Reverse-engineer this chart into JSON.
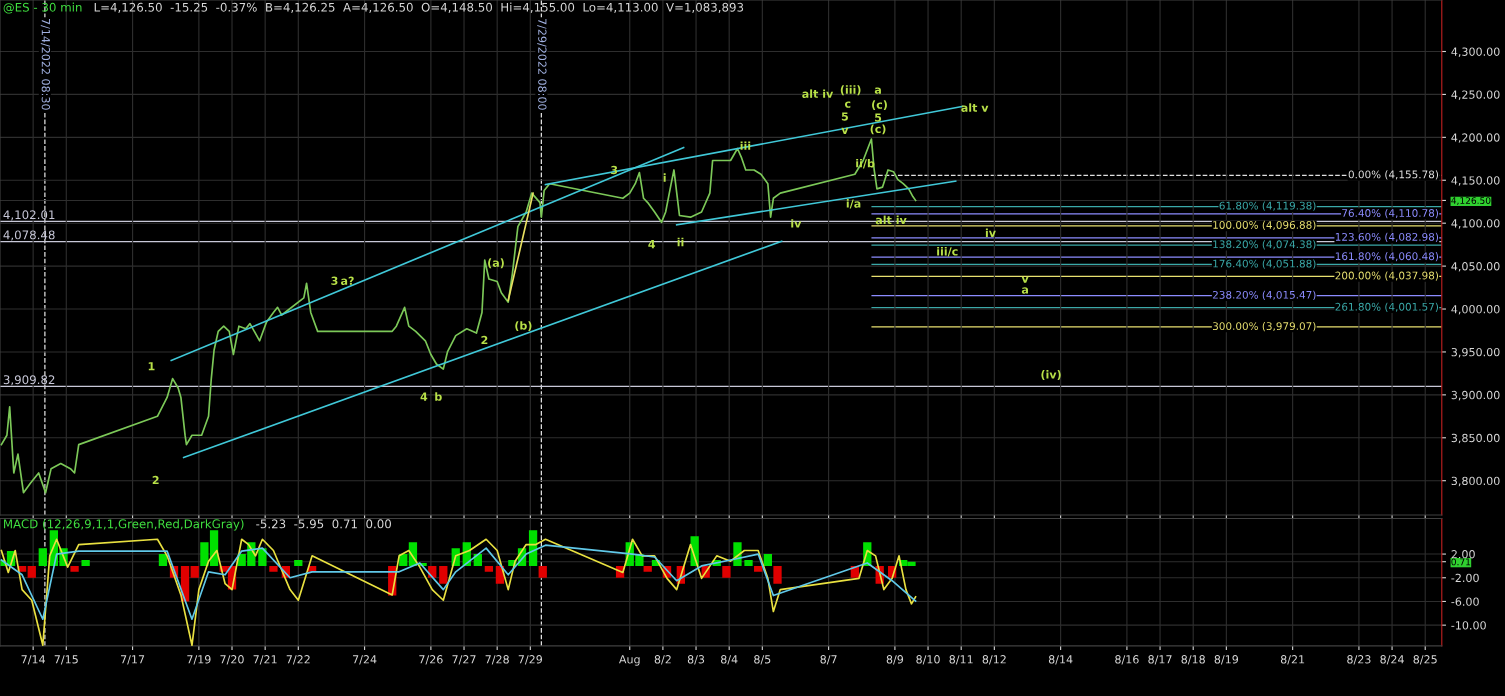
{
  "chart_data": [
    {
      "type": "line",
      "title": "@ES - 30 min",
      "subtitle": "L=4,126.50  -15.25  -0.37%  B=4,126.25  A=4,126.50  O=4,148.50  Hi=4,155.00  Lo=4,113.00  V=1,083,893",
      "xlim": [
        "2022-07-13T00:00",
        "2022-08-25T12:00"
      ],
      "ylim": [
        3760,
        4360
      ],
      "xticks": [
        {
          "value": "2022-07-14",
          "label": null
        },
        {
          "value": "2022-07-15",
          "label": null
        },
        {
          "value": "2022-07-17",
          "label": null
        },
        {
          "value": "2022-07-19",
          "label": null
        },
        {
          "value": "2022-07-20",
          "label": null
        },
        {
          "value": "2022-07-21",
          "label": null
        },
        {
          "value": "2022-07-22",
          "label": null
        },
        {
          "value": "2022-07-24",
          "label": null
        },
        {
          "value": "2022-07-26",
          "label": null
        },
        {
          "value": "2022-07-27",
          "label": null
        },
        {
          "value": "2022-07-28",
          "label": null
        },
        {
          "value": "2022-07-29",
          "label": null
        },
        {
          "value": "2022-08-01",
          "label": null
        },
        {
          "value": "2022-08-02",
          "label": null
        },
        {
          "value": "2022-08-03",
          "label": null
        },
        {
          "value": "2022-08-04",
          "label": null
        },
        {
          "value": "2022-08-05",
          "label": null
        },
        {
          "value": "2022-08-07",
          "label": null
        },
        {
          "value": "2022-08-09",
          "label": null
        },
        {
          "value": "2022-08-10",
          "label": null
        },
        {
          "value": "2022-08-11",
          "label": null
        },
        {
          "value": "2022-08-12",
          "label": null
        },
        {
          "value": "2022-08-14",
          "label": null
        },
        {
          "value": "2022-08-16",
          "label": null
        },
        {
          "value": "2022-08-17",
          "label": null
        },
        {
          "value": "2022-08-18",
          "label": null
        },
        {
          "value": "2022-08-19",
          "label": null
        },
        {
          "value": "2022-08-21",
          "label": null
        },
        {
          "value": "2022-08-23",
          "label": null
        },
        {
          "value": "2022-08-24",
          "label": null
        },
        {
          "value": "2022-08-25",
          "label": null
        }
      ],
      "yticks": [
        {
          "value": 3800,
          "label": "3,800.00"
        },
        {
          "value": 3850,
          "label": "3,850.00"
        },
        {
          "value": 3900,
          "label": "3,900.00"
        },
        {
          "value": 3950,
          "label": "3,950.00"
        },
        {
          "value": 4000,
          "label": "4,000.00"
        },
        {
          "value": 4050,
          "label": "4,050.00"
        },
        {
          "value": 4100,
          "label": "4,100.00"
        },
        {
          "value": 4126.5,
          "label": "4,126.50"
        },
        {
          "value": 4150,
          "label": "4,150.00"
        },
        {
          "value": 4200,
          "label": "4,200.00"
        },
        {
          "value": 4250,
          "label": "4,250.00"
        },
        {
          "value": 4300,
          "label": "4,300.00"
        }
      ],
      "tick_labels": "y",
      "grid": true,
      "legend": false,
      "series": [
        {
          "color": "#7cc858",
          "x": [
            "2022-07-13T01:00",
            "2022-07-13T05:00",
            "2022-07-13T07:00",
            "2022-07-13T10:00",
            "2022-07-13T13:00",
            "2022-07-13T17:00",
            "2022-07-13T22:00",
            "2022-07-14T04:00",
            "2022-07-14T09:00",
            "2022-07-14T13:00",
            "2022-07-14T20:00",
            "2022-07-15T03:00",
            "2022-07-15T06:00",
            "2022-07-15T09:00",
            "2022-07-17T18:00",
            "2022-07-18T01:00",
            "2022-07-18T05:00",
            "2022-07-18T09:00",
            "2022-07-18T11:00",
            "2022-07-18T14:00",
            "2022-07-18T15:00",
            "2022-07-18T19:00",
            "2022-07-19T02:00",
            "2022-07-19T07:00",
            "2022-07-19T09:00",
            "2022-07-19T11:00",
            "2022-07-19T14:00",
            "2022-07-19T18:00",
            "2022-07-19T22:00",
            "2022-07-20T01:00",
            "2022-07-20T05:00",
            "2022-07-20T10:00",
            "2022-07-20T13:00",
            "2022-07-20T20:00",
            "2022-07-21T01:00",
            "2022-07-21T06:00",
            "2022-07-21T09:00",
            "2022-07-21T12:00",
            "2022-07-22T04:00",
            "2022-07-22T06:00",
            "2022-07-22T09:00",
            "2022-07-22T14:00",
            "2022-07-24T20:00",
            "2022-07-24T23:00",
            "2022-07-25T05:00",
            "2022-07-25T08:00",
            "2022-07-25T13:00",
            "2022-07-25T20:00",
            "2022-07-26T00:00",
            "2022-07-26T04:00",
            "2022-07-26T09:00",
            "2022-07-26T12:00",
            "2022-07-26T18:00",
            "2022-07-27T02:00",
            "2022-07-27T09:00",
            "2022-07-27T13:00",
            "2022-07-27T15:00",
            "2022-07-27T18:00",
            "2022-07-28T00:00",
            "2022-07-28T03:00",
            "2022-07-28T08:00",
            "2022-07-28T11:00",
            "2022-07-28T15:00",
            "2022-07-28T21:00",
            "2022-07-29T01:00",
            "2022-07-29T07:00",
            "2022-07-29T08:00",
            "2022-07-29T10:00",
            "2022-07-29T14:00",
            "2022-07-31T19:00",
            "2022-08-01T00:00",
            "2022-08-01T04:00",
            "2022-08-01T07:00",
            "2022-08-01T10:00",
            "2022-08-01T13:00",
            "2022-08-01T18:00",
            "2022-08-01T23:00",
            "2022-08-02T02:00",
            "2022-08-02T06:00",
            "2022-08-02T08:00",
            "2022-08-02T12:00",
            "2022-08-02T20:00",
            "2022-08-03T04:00",
            "2022-08-03T10:00",
            "2022-08-03T12:00",
            "2022-08-03T18:00",
            "2022-08-04T01:00",
            "2022-08-04T06:00",
            "2022-08-04T09:00",
            "2022-08-04T12:00",
            "2022-08-04T18:00",
            "2022-08-04T23:00",
            "2022-08-05T04:00",
            "2022-08-05T06:00",
            "2022-08-05T08:00",
            "2022-08-05T13:00",
            "2022-08-07T19:00",
            "2022-08-08T01:00",
            "2022-08-08T07:00",
            "2022-08-08T09:00",
            "2022-08-08T11:00",
            "2022-08-08T15:00",
            "2022-08-08T19:00",
            "2022-08-08T23:00",
            "2022-08-09T02:00",
            "2022-08-09T06:00",
            "2022-08-09T10:00",
            "2022-08-09T13:00",
            "2022-08-09T15:00"
          ],
          "values": [
            3842,
            3853,
            3886,
            3809,
            3831,
            3786,
            3797,
            3809,
            3786,
            3814,
            3820,
            3814,
            3809,
            3842,
            3875,
            3897,
            3919,
            3908,
            3897,
            3853,
            3842,
            3853,
            3853,
            3875,
            3919,
            3952,
            3974,
            3980,
            3974,
            3947,
            3980,
            3977,
            3983,
            3963,
            3985,
            3996,
            4002,
            3993,
            4013,
            4030,
            3996,
            3974,
            3974,
            3980,
            4002,
            3980,
            3974,
            3963,
            3947,
            3936,
            3930,
            3950,
            3969,
            3977,
            3972,
            3996,
            4057,
            4035,
            4032,
            4019,
            4008,
            4041,
            4096,
            4113,
            4135,
            4124,
            4107,
            4138,
            4146,
            4129,
            4135,
            4146,
            4159,
            4129,
            4124,
            4113,
            4101,
            4113,
            4146,
            4162,
            4109,
            4107,
            4113,
            4135,
            4173,
            4173,
            4173,
            4187,
            4176,
            4162,
            4162,
            4157,
            4146,
            4107,
            4129,
            4135,
            4157,
            4173,
            4198,
            4162,
            4140,
            4142,
            4162,
            4160,
            4151,
            4146,
            4140,
            4131,
            4126.5
          ]
        },
        {
          "type": "line",
          "color": "#40c8d8",
          "x": [
            "2022-07-18T04:00",
            "2022-08-02T15:00"
          ],
          "values": [
            3940,
            4188
          ]
        },
        {
          "type": "line",
          "color": "#40c8d8",
          "x": [
            "2022-07-29T11:00",
            "2022-08-11T01:00"
          ],
          "values": [
            4145,
            4236
          ]
        },
        {
          "type": "line",
          "color": "#40c8d8",
          "x": [
            "2022-07-18T13:00",
            "2022-08-05T14:00"
          ],
          "values": [
            3827,
            4079
          ]
        },
        {
          "type": "line",
          "color": "#40c8d8",
          "x": [
            "2022-08-02T10:00",
            "2022-08-10T20:00"
          ],
          "values": [
            4098,
            4149
          ]
        },
        {
          "type": "line",
          "color": "#e8e060",
          "x": [
            "2022-07-28T08:00",
            "2022-07-29T02:00"
          ],
          "values": [
            4010,
            4135
          ]
        }
      ],
      "ref_lines": [
        {
          "axis": "x",
          "value": "2022-07-14T08:30",
          "label": "7/14/2022 08:30",
          "color": "#e0e0e0",
          "line_style": "dashed"
        },
        {
          "axis": "x",
          "value": "2022-07-29T08:00",
          "label": "7/29/2022 08:00",
          "color": "#e0e0e0",
          "line_style": "dashed"
        },
        {
          "axis": "y",
          "value": 4102.01,
          "label": "4,102.01",
          "color": "#c8c8d8",
          "line_style": "solid"
        },
        {
          "axis": "y",
          "value": 4078.48,
          "label": "4,078.48",
          "color": "#c8c8d8",
          "line_style": "solid"
        },
        {
          "axis": "y",
          "value": 3909.82,
          "label": "3,909.82",
          "color": "#c8c8d8",
          "line_style": "solid"
        },
        {
          "axis": "y",
          "value": 4155.78,
          "label": "0.00% (4,155.78)",
          "color": "#e0e0e0",
          "line_style": "dashed"
        },
        {
          "axis": "y",
          "value": 4119.38,
          "label": "61.80% (4,119.38)",
          "color": "#3aa8a8",
          "line_style": "solid"
        },
        {
          "axis": "y",
          "value": 4110.78,
          "label": "76.40% (4,110.78)",
          "color": "#8c8cff",
          "line_style": "solid"
        },
        {
          "axis": "y",
          "value": 4096.88,
          "label": "100.00% (4,096.88)",
          "color": "#e8e070",
          "line_style": "solid"
        },
        {
          "axis": "y",
          "value": 4082.98,
          "label": "123.60% (4,082.98)",
          "color": "#8c8cff",
          "line_style": "solid"
        },
        {
          "axis": "y",
          "value": 4074.38,
          "label": "138.20% (4,074.38)",
          "color": "#3aa8a8",
          "line_style": "solid"
        },
        {
          "axis": "y",
          "value": 4060.48,
          "label": "161.80% (4,060.48)",
          "color": "#8c8cff",
          "line_style": "solid"
        },
        {
          "axis": "y",
          "value": 4051.88,
          "label": "176.40% (4,051.88)",
          "color": "#3aa8a8",
          "line_style": "solid"
        },
        {
          "axis": "y",
          "value": 4037.98,
          "label": "200.00% (4,037.98)",
          "color": "#e8e070",
          "line_style": "solid"
        },
        {
          "axis": "y",
          "value": 4015.47,
          "label": "238.20% (4,015.47)",
          "color": "#8c8cff",
          "line_style": "solid"
        },
        {
          "axis": "y",
          "value": 4001.57,
          "label": "261.80% (4,001.57)",
          "color": "#3aa8a8",
          "line_style": "solid"
        },
        {
          "axis": "y",
          "value": 3979.07,
          "label": "300.00% (3,979.07)",
          "color": "#e8e070",
          "line_style": "solid"
        }
      ],
      "annotations": [
        "1",
        "2",
        "3",
        "a?",
        "4",
        "b",
        "(a)",
        "(b)",
        "2",
        "3",
        "i",
        "4",
        "ii",
        "iii",
        "iv",
        "alt iv",
        "(iii)",
        "c",
        "5",
        "v",
        "a",
        "(c)",
        "5",
        "(c)",
        "ii/b",
        "i/a",
        "alt iv",
        "iv",
        "iii/c",
        "v",
        "a",
        "(iv)",
        "alt v"
      ]
    },
    {
      "type": "line",
      "title": "MACD (12,26,9,1,1,Green,Red,DarkGray)",
      "subtitle": "-5.23  -5.95  0.71  0.00",
      "xlim": [
        "2022-07-13T00:00",
        "2022-08-25T12:00"
      ],
      "ylim": [
        -13.5,
        8
      ],
      "xticks": [
        {
          "value": "2022-07-14",
          "label": "7/14"
        },
        {
          "value": "2022-07-15",
          "label": "7/15"
        },
        {
          "value": "2022-07-17",
          "label": "7/17"
        },
        {
          "value": "2022-07-19",
          "label": "7/19"
        },
        {
          "value": "2022-07-20",
          "label": "7/20"
        },
        {
          "value": "2022-07-21",
          "label": "7/21"
        },
        {
          "value": "2022-07-22",
          "label": "7/22"
        },
        {
          "value": "2022-07-24",
          "label": "7/24"
        },
        {
          "value": "2022-07-26",
          "label": "7/26"
        },
        {
          "value": "2022-07-27",
          "label": "7/27"
        },
        {
          "value": "2022-07-28",
          "label": "7/28"
        },
        {
          "value": "2022-07-29",
          "label": "7/29"
        },
        {
          "value": "2022-08-01",
          "label": "Aug"
        },
        {
          "value": "2022-08-02",
          "label": "8/2"
        },
        {
          "value": "2022-08-03",
          "label": "8/3"
        },
        {
          "value": "2022-08-04",
          "label": "8/4"
        },
        {
          "value": "2022-08-05",
          "label": "8/5"
        },
        {
          "value": "2022-08-07",
          "label": "8/7"
        },
        {
          "value": "2022-08-09",
          "label": "8/9"
        },
        {
          "value": "2022-08-10",
          "label": "8/10"
        },
        {
          "value": "2022-08-11",
          "label": "8/11"
        },
        {
          "value": "2022-08-12",
          "label": "8/12"
        },
        {
          "value": "2022-08-14",
          "label": "8/14"
        },
        {
          "value": "2022-08-16",
          "label": "8/16"
        },
        {
          "value": "2022-08-17",
          "label": "8/17"
        },
        {
          "value": "2022-08-18",
          "label": "8/18"
        },
        {
          "value": "2022-08-19",
          "label": "8/19"
        },
        {
          "value": "2022-08-21",
          "label": "8/21"
        },
        {
          "value": "2022-08-23",
          "label": "8/23"
        },
        {
          "value": "2022-08-24",
          "label": "8/24"
        },
        {
          "value": "2022-08-25",
          "label": "8/25"
        }
      ],
      "yticks": [
        {
          "value": 2,
          "label": "2.00"
        },
        {
          "value": 0.71,
          "label": "0.71"
        },
        {
          "value": -2,
          "label": "-2.00"
        },
        {
          "value": -6,
          "label": "-6.00"
        },
        {
          "value": -10,
          "label": "-10.00"
        }
      ],
      "grid": true,
      "legend": false,
      "series": [
        {
          "type": "bar",
          "x": [
            "2022-07-13T01:00",
            "2022-07-13T08:00",
            "2022-07-13T16:00",
            "2022-07-13T23:00",
            "2022-07-14T07:00",
            "2022-07-14T15:00",
            "2022-07-14T22:00",
            "2022-07-15T06:00",
            "2022-07-15T14:00",
            "2022-07-17T22:00",
            "2022-07-18T06:00",
            "2022-07-18T14:00",
            "2022-07-18T21:00",
            "2022-07-19T04:00",
            "2022-07-19T11:00",
            "2022-07-19T18:00",
            "2022-07-20T00:00",
            "2022-07-20T07:00",
            "2022-07-20T14:00",
            "2022-07-20T22:00",
            "2022-07-21T06:00",
            "2022-07-21T15:00",
            "2022-07-22T00:00",
            "2022-07-22T10:00",
            "2022-07-24T20:00",
            "2022-07-25T04:00",
            "2022-07-25T11:00",
            "2022-07-25T18:00",
            "2022-07-26T01:00",
            "2022-07-26T09:00",
            "2022-07-26T18:00",
            "2022-07-27T02:00",
            "2022-07-27T10:00",
            "2022-07-27T18:00",
            "2022-07-28T02:00",
            "2022-07-28T11:00",
            "2022-07-28T18:00",
            "2022-07-29T02:00",
            "2022-07-29T09:00",
            "2022-07-31T17:00",
            "2022-08-01T00:00",
            "2022-08-01T07:00",
            "2022-08-01T13:00",
            "2022-08-01T19:00",
            "2022-08-02T03:00",
            "2022-08-02T13:00",
            "2022-08-02T23:00",
            "2022-08-03T07:00",
            "2022-08-03T15:00",
            "2022-08-03T22:00",
            "2022-08-04T06:00",
            "2022-08-04T14:00",
            "2022-08-04T21:00",
            "2022-08-05T04:00",
            "2022-08-05T11:00",
            "2022-08-07T19:00",
            "2022-08-08T04:00",
            "2022-08-08T13:00",
            "2022-08-08T22:00",
            "2022-08-09T06:00",
            "2022-08-09T12:00"
          ],
          "values": [
            1,
            2.5,
            -1,
            -2,
            3,
            6,
            3,
            -1,
            1,
            2,
            -2,
            -6,
            -2,
            4,
            6,
            -1,
            -4,
            2,
            4,
            3,
            -1,
            -2,
            1,
            -1,
            -5,
            2,
            4,
            0.5,
            -2,
            -3,
            3,
            4,
            2,
            -1,
            -3,
            1,
            3,
            6,
            -2,
            -2,
            4,
            2,
            -1,
            1,
            -2,
            -3,
            5,
            -2,
            1,
            -2,
            4,
            1,
            -1,
            2,
            -3,
            -2,
            4,
            -3,
            -2,
            1,
            0.71
          ],
          "colors": [
            "#00e000",
            "#00e000",
            "#e00000",
            "#e00000",
            "#00e000",
            "#00e000",
            "#00e000",
            "#e00000",
            "#00e000",
            "#00e000",
            "#e00000",
            "#e00000",
            "#e00000",
            "#00e000",
            "#00e000",
            "#e00000",
            "#e00000",
            "#00e000",
            "#00e000",
            "#00e000",
            "#e00000",
            "#e00000",
            "#00e000",
            "#e00000",
            "#e00000",
            "#00e000",
            "#00e000",
            "#00e000",
            "#e00000",
            "#e00000",
            "#00e000",
            "#00e000",
            "#00e000",
            "#e00000",
            "#e00000",
            "#00e000",
            "#00e000",
            "#00e000",
            "#e00000",
            "#e00000",
            "#00e000",
            "#00e000",
            "#e00000",
            "#00e000",
            "#e00000",
            "#e00000",
            "#00e000",
            "#e00000",
            "#00e000",
            "#e00000",
            "#00e000",
            "#00e000",
            "#e00000",
            "#00e000",
            "#e00000",
            "#e00000",
            "#00e000",
            "#e00000",
            "#e00000",
            "#00e000",
            "#00e000"
          ]
        },
        {
          "type": "line",
          "color": "#e8e040",
          "x": [
            "2022-07-13T01:00",
            "2022-07-13T06:00",
            "2022-07-13T11:00",
            "2022-07-13T16:00",
            "2022-07-13T23:00",
            "2022-07-14T07:00",
            "2022-07-14T12:00",
            "2022-07-14T17:00",
            "2022-07-15T01:00",
            "2022-07-15T09:00",
            "2022-07-17T18:00",
            "2022-07-18T01:00",
            "2022-07-18T11:00",
            "2022-07-18T19:00",
            "2022-07-19T00:00",
            "2022-07-19T07:00",
            "2022-07-19T13:00",
            "2022-07-19T19:00",
            "2022-07-20T00:00",
            "2022-07-20T07:00",
            "2022-07-20T12:00",
            "2022-07-20T17:00",
            "2022-07-20T22:00",
            "2022-07-21T06:00",
            "2022-07-21T18:00",
            "2022-07-22T00:00",
            "2022-07-22T10:00",
            "2022-07-24T20:00",
            "2022-07-25T01:00",
            "2022-07-25T08:00",
            "2022-07-25T16:00",
            "2022-07-26T01:00",
            "2022-07-26T09:00",
            "2022-07-26T18:00",
            "2022-07-27T04:00",
            "2022-07-27T16:00",
            "2022-07-28T00:00",
            "2022-07-28T08:00",
            "2022-07-28T13:00",
            "2022-07-28T21:00",
            "2022-07-29T04:00",
            "2022-07-29T11:00",
            "2022-07-31T19:00",
            "2022-08-01T02:00",
            "2022-08-01T09:00",
            "2022-08-01T18:00",
            "2022-08-02T03:00",
            "2022-08-02T10:00",
            "2022-08-02T20:00",
            "2022-08-03T04:00",
            "2022-08-03T15:00",
            "2022-08-04T01:00",
            "2022-08-04T11:00",
            "2022-08-04T21:00",
            "2022-08-05T04:00",
            "2022-08-05T08:00",
            "2022-08-05T13:00",
            "2022-08-07T22:00",
            "2022-08-08T04:00",
            "2022-08-08T10:00",
            "2022-08-08T16:00",
            "2022-08-08T22:00",
            "2022-08-09T03:00",
            "2022-08-09T08:00",
            "2022-08-09T12:00",
            "2022-08-09T15:00"
          ],
          "values": [
            2.6,
            -1.1,
            2.6,
            -4.0,
            -5.8,
            -13.4,
            1.7,
            4.5,
            -0.2,
            3.6,
            4.5,
            1.7,
            -4.9,
            -13.4,
            -4.0,
            0.8,
            2.6,
            -3.0,
            -4.0,
            4.5,
            3.6,
            1.7,
            4.5,
            2.6,
            -4.0,
            -5.8,
            1.7,
            -4.9,
            1.7,
            2.6,
            -0.2,
            -4.0,
            -5.8,
            1.7,
            2.6,
            4.5,
            2.6,
            -4.0,
            0.8,
            3.6,
            3.6,
            4.5,
            -1.1,
            4.5,
            1.7,
            1.7,
            -2.1,
            -4.0,
            3.6,
            -2.1,
            1.7,
            0.8,
            2.6,
            2.6,
            -2.1,
            -7.7,
            -4.0,
            -2.1,
            2.6,
            1.7,
            -4.0,
            -2.1,
            1.7,
            -4.0,
            -6.4,
            -5.23
          ]
        },
        {
          "type": "line",
          "color": "#60c8e8",
          "x": [
            "2022-07-13T01:00",
            "2022-07-13T16:00",
            "2022-07-14T07:00",
            "2022-07-14T17:00",
            "2022-07-15T09:00",
            "2022-07-18T01:00",
            "2022-07-18T19:00",
            "2022-07-19T07:00",
            "2022-07-19T19:00",
            "2022-07-20T07:00",
            "2022-07-20T22:00",
            "2022-07-21T18:00",
            "2022-07-22T10:00",
            "2022-07-25T01:00",
            "2022-07-25T16:00",
            "2022-07-26T09:00",
            "2022-07-26T18:00",
            "2022-07-27T16:00",
            "2022-07-28T08:00",
            "2022-07-28T21:00",
            "2022-07-29T11:00",
            "2022-08-01T02:00",
            "2022-08-01T18:00",
            "2022-08-02T10:00",
            "2022-08-03T04:00",
            "2022-08-04T01:00",
            "2022-08-04T21:00",
            "2022-08-05T08:00",
            "2022-08-08T04:00",
            "2022-08-08T22:00",
            "2022-08-09T15:00"
          ],
          "values": [
            1.0,
            -1.5,
            -9.0,
            2.0,
            2.5,
            2.5,
            -9.0,
            -1.0,
            -1.5,
            2.5,
            3.0,
            -2.0,
            -1.0,
            -1.0,
            0.5,
            -4.0,
            -1.0,
            3.0,
            -1.5,
            2.0,
            3.5,
            2.0,
            1.5,
            -2.5,
            0.0,
            1.0,
            2.0,
            -5.0,
            0.5,
            -2.5,
            -5.95
          ]
        }
      ],
      "ref_lines": [
        {
          "axis": "x",
          "value": "2022-07-14T08:30",
          "color": "#e0e0e0",
          "line_style": "dashed"
        },
        {
          "axis": "x",
          "value": "2022-07-29T08:00",
          "color": "#e0e0e0",
          "line_style": "dashed"
        }
      ]
    }
  ]
}
